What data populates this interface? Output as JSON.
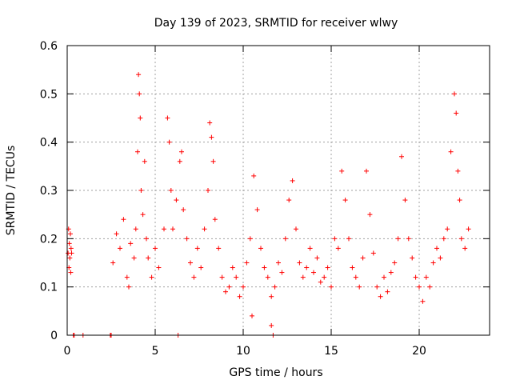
{
  "chart_data": {
    "type": "scatter",
    "title": "Day 139 of 2023, SRMTID for receiver wlwy",
    "xlabel": "GPS time / hours",
    "ylabel": "SRMTID / TECUs",
    "xlim": [
      0,
      24
    ],
    "ylim": [
      0,
      0.6
    ],
    "xticks": [
      0,
      5,
      10,
      15,
      20
    ],
    "yticks": [
      0,
      0.1,
      0.2,
      0.3,
      0.4,
      0.5,
      0.6
    ],
    "xtick_labels": [
      "0",
      "5",
      "10",
      "15",
      "20"
    ],
    "ytick_labels": [
      "0",
      "0.1",
      "0.2",
      "0.3",
      "0.4",
      "0.5",
      "0.6"
    ],
    "grid": true,
    "marker": "plus",
    "series": [
      {
        "name": "SRMTID",
        "color": "#ff0000",
        "x": [
          0.05,
          0.08,
          0.1,
          0.12,
          0.15,
          0.18,
          0.2,
          0.22,
          0.25,
          2.6,
          2.8,
          3.0,
          3.2,
          3.4,
          3.5,
          3.6,
          3.8,
          3.9,
          4.0,
          4.05,
          4.1,
          4.15,
          4.2,
          4.3,
          4.4,
          4.5,
          4.6,
          4.8,
          5.0,
          5.2,
          5.5,
          5.7,
          5.8,
          5.9,
          6.0,
          6.2,
          6.4,
          6.5,
          6.6,
          6.8,
          7.0,
          7.2,
          7.4,
          7.6,
          7.8,
          8.0,
          8.1,
          8.2,
          8.3,
          8.4,
          8.6,
          8.8,
          9.0,
          9.2,
          9.4,
          9.6,
          9.8,
          10.0,
          10.2,
          10.4,
          10.6,
          10.8,
          11.0,
          11.2,
          11.4,
          11.6,
          11.8,
          12.0,
          12.2,
          12.4,
          12.6,
          12.8,
          13.0,
          13.2,
          13.4,
          13.6,
          13.8,
          14.0,
          14.2,
          14.4,
          14.6,
          14.8,
          15.0,
          15.2,
          15.4,
          15.6,
          15.8,
          16.0,
          16.2,
          16.4,
          16.6,
          16.8,
          17.0,
          17.2,
          17.4,
          17.6,
          17.8,
          18.0,
          18.2,
          18.4,
          18.6,
          18.8,
          19.0,
          19.2,
          19.4,
          19.6,
          19.8,
          20.0,
          20.2,
          20.4,
          20.6,
          20.8,
          21.0,
          21.2,
          21.4,
          21.6,
          21.8,
          22.0,
          22.1,
          22.2,
          22.3,
          22.4,
          22.6,
          22.8,
          10.5,
          11.6,
          0.35,
          0.4,
          0.9,
          2.45,
          2.5,
          6.3,
          11.7
        ],
        "y": [
          0.17,
          0.22,
          0.14,
          0.19,
          0.16,
          0.21,
          0.13,
          0.18,
          0.17,
          0.15,
          0.21,
          0.18,
          0.24,
          0.12,
          0.1,
          0.19,
          0.16,
          0.22,
          0.38,
          0.54,
          0.5,
          0.45,
          0.3,
          0.25,
          0.36,
          0.2,
          0.16,
          0.12,
          0.18,
          0.14,
          0.22,
          0.45,
          0.4,
          0.3,
          0.22,
          0.28,
          0.36,
          0.38,
          0.26,
          0.2,
          0.15,
          0.12,
          0.18,
          0.14,
          0.22,
          0.3,
          0.44,
          0.41,
          0.36,
          0.24,
          0.18,
          0.12,
          0.09,
          0.1,
          0.14,
          0.12,
          0.08,
          0.1,
          0.15,
          0.2,
          0.33,
          0.26,
          0.18,
          0.14,
          0.12,
          0.08,
          0.1,
          0.15,
          0.13,
          0.2,
          0.28,
          0.32,
          0.22,
          0.15,
          0.12,
          0.14,
          0.18,
          0.13,
          0.16,
          0.11,
          0.12,
          0.14,
          0.1,
          0.2,
          0.18,
          0.34,
          0.28,
          0.2,
          0.14,
          0.12,
          0.1,
          0.16,
          0.34,
          0.25,
          0.17,
          0.1,
          0.08,
          0.12,
          0.09,
          0.13,
          0.15,
          0.2,
          0.37,
          0.28,
          0.2,
          0.16,
          0.12,
          0.1,
          0.07,
          0.12,
          0.1,
          0.15,
          0.18,
          0.16,
          0.2,
          0.22,
          0.38,
          0.5,
          0.46,
          0.34,
          0.28,
          0.2,
          0.18,
          0.22,
          0.04,
          0.02,
          0.0,
          0.0,
          0.0,
          0.0,
          0.0,
          0.0,
          0.0
        ]
      }
    ]
  }
}
